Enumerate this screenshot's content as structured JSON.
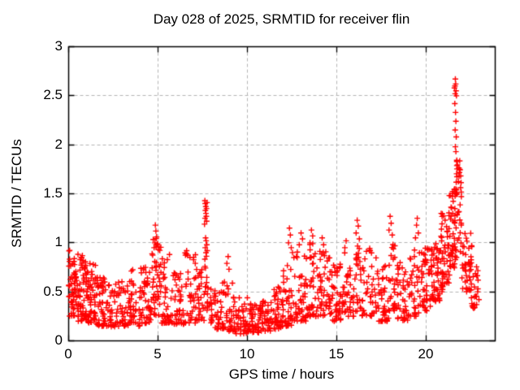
{
  "window": {
    "background": "#ffffff"
  },
  "chart_data": {
    "type": "scatter",
    "title": "Day 028 of 2025, SRMTID for receiver flin",
    "xlabel": "GPS time / hours",
    "ylabel": "SRMTID / TECUs",
    "xlim": [
      0,
      23.86
    ],
    "ylim": [
      0,
      3
    ],
    "xticks": [
      0,
      5,
      10,
      15,
      20
    ],
    "xtick_labels": [
      "0",
      "5",
      "10",
      "15",
      "20"
    ],
    "yticks": [
      0,
      0.5,
      1,
      1.5,
      2,
      2.5,
      3
    ],
    "ytick_labels": [
      "0",
      "0.5",
      "1",
      "1.5",
      "2",
      "2.5",
      "3"
    ],
    "grid": {
      "visible": true,
      "style": "dashed",
      "color": "#b5b5b5"
    },
    "axis_color": "#000000",
    "marker": {
      "shape": "plus",
      "color": "#ff0000",
      "size": 7,
      "line_width": 1.4
    },
    "legend": "none",
    "prng_seed": 20250128,
    "series": [
      {
        "name": "SRMTID",
        "density_segments": [
          [
            0.0,
            0.5,
            55,
            0.25,
            0.95,
            1.5
          ],
          [
            0.5,
            1.0,
            60,
            0.2,
            0.9,
            1.6
          ],
          [
            1.0,
            1.5,
            55,
            0.18,
            0.8,
            1.7
          ],
          [
            1.5,
            2.1,
            50,
            0.15,
            0.65,
            1.5
          ],
          [
            2.1,
            2.7,
            35,
            0.14,
            0.58,
            1.5
          ],
          [
            2.7,
            3.3,
            35,
            0.15,
            0.62,
            1.6
          ],
          [
            3.3,
            4.1,
            50,
            0.15,
            0.75,
            1.7
          ],
          [
            4.1,
            4.6,
            40,
            0.18,
            0.8,
            1.6
          ],
          [
            4.6,
            5.2,
            48,
            0.25,
            1.05,
            1.3
          ],
          [
            5.2,
            5.9,
            40,
            0.18,
            0.85,
            1.7
          ],
          [
            5.9,
            6.5,
            40,
            0.17,
            0.7,
            1.6
          ],
          [
            6.5,
            7.2,
            42,
            0.18,
            0.9,
            1.8
          ],
          [
            7.2,
            7.6,
            25,
            0.2,
            0.75,
            1.4
          ],
          [
            7.6,
            7.9,
            18,
            0.3,
            0.9,
            1.1
          ],
          [
            7.9,
            8.6,
            40,
            0.12,
            0.55,
            1.4
          ],
          [
            8.6,
            9.2,
            35,
            0.1,
            0.6,
            1.5
          ],
          [
            9.2,
            10.0,
            45,
            0.07,
            0.45,
            1.4
          ],
          [
            10.0,
            10.7,
            45,
            0.08,
            0.38,
            1.3
          ],
          [
            10.7,
            11.4,
            45,
            0.1,
            0.42,
            1.4
          ],
          [
            11.4,
            12.0,
            45,
            0.12,
            0.55,
            1.5
          ],
          [
            12.0,
            12.6,
            40,
            0.15,
            0.78,
            1.6
          ],
          [
            12.6,
            13.3,
            45,
            0.2,
            0.92,
            1.6
          ],
          [
            13.3,
            14.0,
            45,
            0.25,
            1.0,
            1.7
          ],
          [
            14.0,
            14.7,
            45,
            0.25,
            0.92,
            1.7
          ],
          [
            14.7,
            15.3,
            40,
            0.2,
            0.82,
            1.6
          ],
          [
            15.3,
            16.0,
            40,
            0.25,
            0.9,
            1.6
          ],
          [
            16.0,
            16.4,
            25,
            0.3,
            1.0,
            1.4
          ],
          [
            16.4,
            17.3,
            46,
            0.25,
            0.95,
            1.7
          ],
          [
            17.3,
            17.9,
            40,
            0.2,
            0.8,
            1.6
          ],
          [
            17.9,
            18.3,
            25,
            0.3,
            1.0,
            1.4
          ],
          [
            18.3,
            19.0,
            40,
            0.2,
            0.82,
            1.6
          ],
          [
            19.0,
            19.6,
            35,
            0.25,
            0.95,
            1.5
          ],
          [
            19.6,
            20.3,
            48,
            0.3,
            0.95,
            1.4
          ],
          [
            20.3,
            20.8,
            48,
            0.4,
            1.05,
            1.4
          ],
          [
            20.8,
            21.3,
            50,
            0.5,
            1.3,
            1.2
          ],
          [
            21.25,
            21.65,
            45,
            0.6,
            1.55,
            1.0
          ],
          [
            21.62,
            21.98,
            26,
            1.45,
            1.87,
            1.0
          ],
          [
            21.6,
            22.0,
            20,
            0.8,
            1.45,
            1.2
          ],
          [
            22.0,
            22.55,
            40,
            0.5,
            1.12,
            1.3
          ],
          [
            22.5,
            22.9,
            22,
            0.33,
            0.8,
            1.4
          ]
        ],
        "spike_points": [
          [
            4.78,
            0.95
          ],
          [
            4.82,
            1.0
          ],
          [
            4.85,
            1.18
          ],
          [
            4.88,
            1.12
          ],
          [
            4.92,
            1.06
          ],
          [
            4.97,
            0.99
          ],
          [
            5.02,
            0.93
          ],
          [
            5.64,
            0.88
          ],
          [
            6.6,
            0.92
          ],
          [
            7.6,
            1.19
          ],
          [
            7.62,
            1.43
          ],
          [
            7.64,
            1.4
          ],
          [
            7.65,
            1.33
          ],
          [
            7.67,
            1.37
          ],
          [
            7.68,
            1.3
          ],
          [
            7.7,
            1.27
          ],
          [
            7.71,
            1.35
          ],
          [
            7.72,
            1.22
          ],
          [
            7.74,
            1.41
          ],
          [
            7.63,
            1.25
          ],
          [
            7.66,
            1.05
          ],
          [
            7.69,
            1.02
          ],
          [
            7.73,
            0.98
          ],
          [
            7.64,
            0.95
          ],
          [
            7.75,
            0.92
          ],
          [
            8.85,
            0.79
          ],
          [
            8.92,
            0.86
          ],
          [
            8.97,
            0.73
          ],
          [
            12.3,
            1.0
          ],
          [
            12.35,
            1.15
          ],
          [
            12.4,
            1.08
          ],
          [
            12.45,
            0.95
          ],
          [
            12.52,
            0.9
          ],
          [
            12.6,
            0.85
          ],
          [
            12.9,
            0.98
          ],
          [
            13.0,
            1.1
          ],
          [
            13.08,
            1.04
          ],
          [
            13.5,
            1.0
          ],
          [
            13.58,
            1.13
          ],
          [
            13.65,
            1.07
          ],
          [
            14.18,
            1.05
          ],
          [
            14.26,
            0.98
          ],
          [
            15.45,
            0.95
          ],
          [
            15.52,
            1.02
          ],
          [
            16.08,
            1.1
          ],
          [
            16.14,
            1.23
          ],
          [
            16.2,
            1.17
          ],
          [
            16.26,
            1.04
          ],
          [
            17.92,
            1.13
          ],
          [
            17.98,
            1.27
          ],
          [
            18.04,
            1.2
          ],
          [
            18.1,
            1.08
          ],
          [
            19.4,
            1.05
          ],
          [
            19.46,
            1.18
          ],
          [
            19.5,
            1.25
          ],
          [
            19.56,
            1.1
          ],
          [
            21.58,
            2.58
          ],
          [
            21.61,
            2.6
          ],
          [
            21.62,
            2.52
          ],
          [
            21.63,
            2.67
          ],
          [
            21.65,
            2.62
          ],
          [
            21.67,
            2.55
          ],
          [
            21.69,
            2.5
          ],
          [
            21.6,
            2.42
          ],
          [
            21.64,
            2.33
          ],
          [
            21.66,
            2.24
          ],
          [
            21.62,
            2.15
          ],
          [
            21.68,
            2.08
          ],
          [
            21.63,
            1.98
          ],
          [
            21.66,
            1.93
          ],
          [
            22.82,
            0.37
          ],
          [
            22.88,
            0.5
          ],
          [
            22.9,
            0.62
          ],
          [
            22.95,
            0.42
          ]
        ]
      }
    ]
  }
}
